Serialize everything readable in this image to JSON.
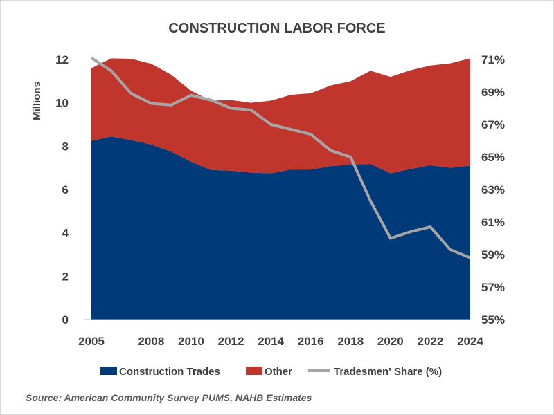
{
  "chart_data": {
    "type": "area",
    "title": "CONSTRUCTION LABOR FORCE",
    "ylabel": "Millions",
    "ylim": [
      0,
      12
    ],
    "y_ticks": [
      "0",
      "2",
      "4",
      "6",
      "8",
      "10",
      "12"
    ],
    "y2lim": [
      55,
      71
    ],
    "y2_ticks": [
      "55%",
      "57%",
      "59%",
      "61%",
      "63%",
      "65%",
      "67%",
      "69%",
      "71%"
    ],
    "x": [
      2005,
      2006,
      2007,
      2008,
      2009,
      2010,
      2011,
      2012,
      2013,
      2014,
      2015,
      2016,
      2017,
      2018,
      2019,
      2020,
      2021,
      2022,
      2023,
      2024
    ],
    "x_ticks": [
      "2005",
      "2008",
      "2010",
      "2012",
      "2014",
      "2016",
      "2018",
      "2020",
      "2022",
      "2024"
    ],
    "stacked": true,
    "series": [
      {
        "name": "Construction Trades",
        "axis": "left",
        "type": "area",
        "color": "#003a78",
        "values": [
          8.25,
          8.45,
          8.28,
          8.08,
          7.75,
          7.28,
          6.9,
          6.87,
          6.78,
          6.75,
          6.92,
          6.92,
          7.08,
          7.15,
          7.18,
          6.75,
          6.95,
          7.12,
          7.0,
          7.1
        ]
      },
      {
        "name": "Other",
        "axis": "left",
        "type": "area",
        "color": "#c0362c",
        "values": [
          3.35,
          3.6,
          3.75,
          3.72,
          3.55,
          3.27,
          3.2,
          3.26,
          3.22,
          3.35,
          3.45,
          3.52,
          3.72,
          3.85,
          4.3,
          4.45,
          4.55,
          4.6,
          4.82,
          4.95
        ]
      },
      {
        "name": "Tradesmen' Share (%)",
        "axis": "right",
        "type": "line",
        "color": "#a6a6a6",
        "values": [
          71.1,
          70.3,
          68.9,
          68.3,
          68.2,
          68.8,
          68.5,
          68.0,
          67.9,
          67.0,
          66.7,
          66.4,
          65.4,
          65.0,
          62.3,
          60.0,
          60.4,
          60.7,
          59.3,
          58.8
        ]
      }
    ],
    "legend": "bottom",
    "grid": false,
    "source": "Source: American Community Survey PUMS, NAHB  Estimates"
  }
}
